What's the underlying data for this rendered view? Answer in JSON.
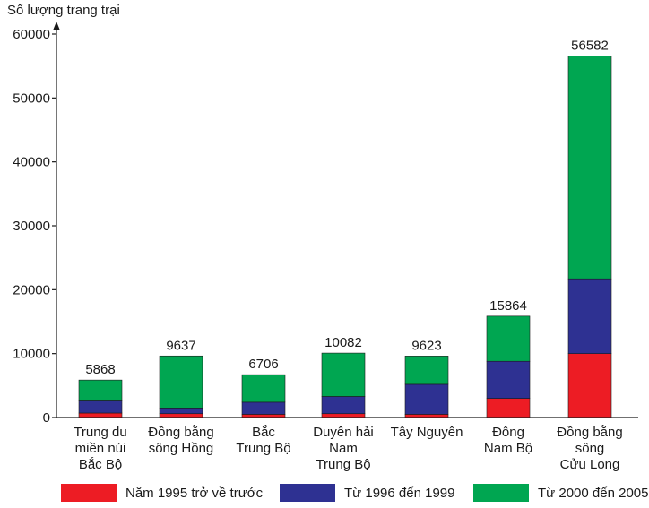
{
  "chart_data": {
    "type": "bar",
    "stacked": true,
    "ylabel": "Số lượng trang trại",
    "ylim": [
      0,
      60000
    ],
    "yticks": [
      0,
      10000,
      20000,
      30000,
      40000,
      50000,
      60000
    ],
    "categories": [
      [
        "Trung du",
        "miền núi",
        "Bắc Bộ"
      ],
      [
        "Đồng bằng",
        "sông Hồng"
      ],
      [
        "Bắc",
        "Trung Bộ"
      ],
      [
        "Duyên hải",
        "Nam",
        "Trung Bộ"
      ],
      [
        "Tây Nguyên"
      ],
      [
        "Đông",
        "Nam Bộ"
      ],
      [
        "Đồng bằng",
        "sông",
        "Cửu Long"
      ]
    ],
    "totals": [
      5868,
      9637,
      6706,
      10082,
      9623,
      15864,
      56582
    ],
    "series": [
      {
        "name": "Năm 1995 trở về trước",
        "color": "#ed1c24",
        "values": [
          700,
          600,
          500,
          600,
          500,
          3000,
          10000
        ]
      },
      {
        "name": "Từ 1996 đến 1999",
        "color": "#2e3192",
        "values": [
          1900,
          900,
          1900,
          2700,
          4700,
          5800,
          11700
        ]
      },
      {
        "name": "Từ 2000 đến 2005",
        "color": "#00a651",
        "values": [
          3268,
          8137,
          4306,
          6782,
          4423,
          7064,
          34882
        ]
      }
    ],
    "legend_position": "bottom"
  }
}
